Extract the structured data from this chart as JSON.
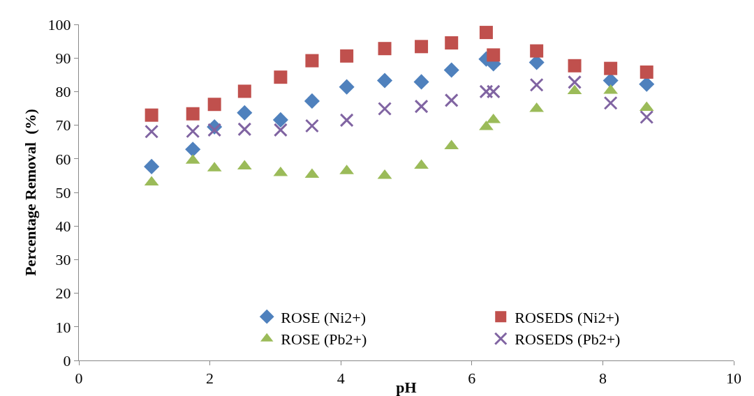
{
  "chart_data": {
    "type": "scatter",
    "xlabel": "pH",
    "ylabel": "Percentage Removal  (%)",
    "x": [
      1.11,
      1.74,
      2.07,
      2.53,
      3.08,
      3.56,
      4.09,
      4.67,
      5.23,
      5.69,
      6.22,
      6.33,
      6.99,
      7.57,
      8.12,
      8.67
    ],
    "series": [
      {
        "name": "ROSE (Ni2+)",
        "color": "#4f81bd",
        "marker": "diamond",
        "values": [
          57.7,
          62.8,
          69.5,
          73.7,
          71.6,
          77.2,
          81.4,
          83.3,
          82.9,
          86.4,
          89.7,
          88.3,
          88.7,
          null,
          83.3,
          82.2
        ]
      },
      {
        "name": "ROSEDS (Ni2+)",
        "color": "#c0504d",
        "marker": "square",
        "values": [
          73.0,
          73.4,
          76.2,
          80.1,
          84.3,
          89.2,
          90.6,
          92.8,
          93.4,
          94.5,
          97.6,
          90.9,
          92.1,
          87.7,
          86.9,
          85.8
        ]
      },
      {
        "name": "ROSE (Pb2+)",
        "color": "#9bbb59",
        "marker": "triangle",
        "values": [
          53.0,
          59.5,
          57.2,
          57.8,
          55.8,
          55.3,
          56.4,
          55.0,
          58.0,
          63.8,
          69.5,
          71.6,
          74.9,
          80.2,
          80.3,
          75.2
        ]
      },
      {
        "name": "ROSEDS (Pb2+)",
        "color": "#8064a2",
        "marker": "cross",
        "values": [
          68.1,
          68.2,
          68.6,
          68.8,
          68.6,
          69.8,
          71.5,
          74.9,
          75.6,
          77.4,
          80.0,
          80.0,
          82.0,
          82.8,
          76.6,
          72.4
        ]
      }
    ],
    "xlim": [
      0,
      10
    ],
    "xticks": [
      0,
      2,
      4,
      6,
      8,
      10
    ],
    "ylim": [
      0,
      100
    ],
    "yticks": [
      0,
      10,
      20,
      30,
      40,
      50,
      60,
      70,
      80,
      90,
      100
    ],
    "grid": false,
    "legend": "bottom right"
  }
}
